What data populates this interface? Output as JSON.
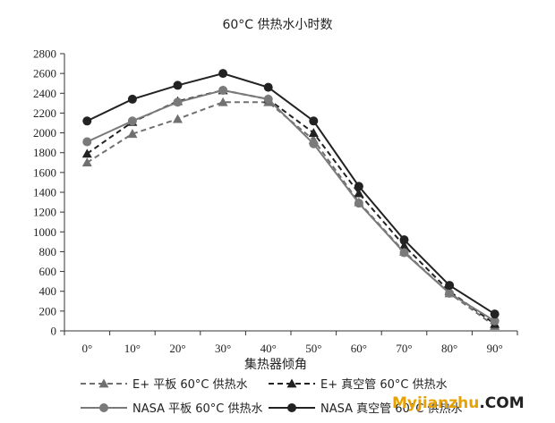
{
  "chart_data": {
    "type": "line",
    "title": "60°C 供热水小时数",
    "xlabel": "集热器倾角",
    "ylabel": "",
    "categories": [
      "0°",
      "10°",
      "20°",
      "30°",
      "40°",
      "50°",
      "60°",
      "70°",
      "80°",
      "90°"
    ],
    "ylim": [
      0,
      2800
    ],
    "yticks": [
      0,
      200,
      400,
      600,
      800,
      1000,
      1200,
      1400,
      1600,
      1800,
      2000,
      2200,
      2400,
      2600,
      2800
    ],
    "grid": false,
    "legend_position": "bottom",
    "series": [
      {
        "name": "E+ 平板 60°C 供热水",
        "values": [
          1700,
          1990,
          2140,
          2310,
          2310,
          1930,
          1300,
          800,
          380,
          50
        ],
        "line": "dashed",
        "marker": "triangle",
        "color": "#707070"
      },
      {
        "name": "E+ 真空管 60°C 供热水",
        "values": [
          1790,
          2110,
          2320,
          2430,
          2340,
          2000,
          1390,
          860,
          400,
          70
        ],
        "line": "dashed",
        "marker": "triangle",
        "color": "#222222"
      },
      {
        "name": "NASA 平板 60°C 供热水",
        "values": [
          1910,
          2120,
          2310,
          2430,
          2340,
          1890,
          1290,
          790,
          380,
          100
        ],
        "line": "solid",
        "marker": "circle",
        "color": "#7a7a7a"
      },
      {
        "name": "NASA 真空管 60°C 供热水",
        "values": [
          2120,
          2340,
          2480,
          2600,
          2460,
          2120,
          1460,
          920,
          460,
          170
        ],
        "line": "solid",
        "marker": "circle",
        "color": "#222222"
      }
    ]
  },
  "watermark": {
    "text_part1": "Myjianzhu",
    "text_part2": ".COM"
  }
}
